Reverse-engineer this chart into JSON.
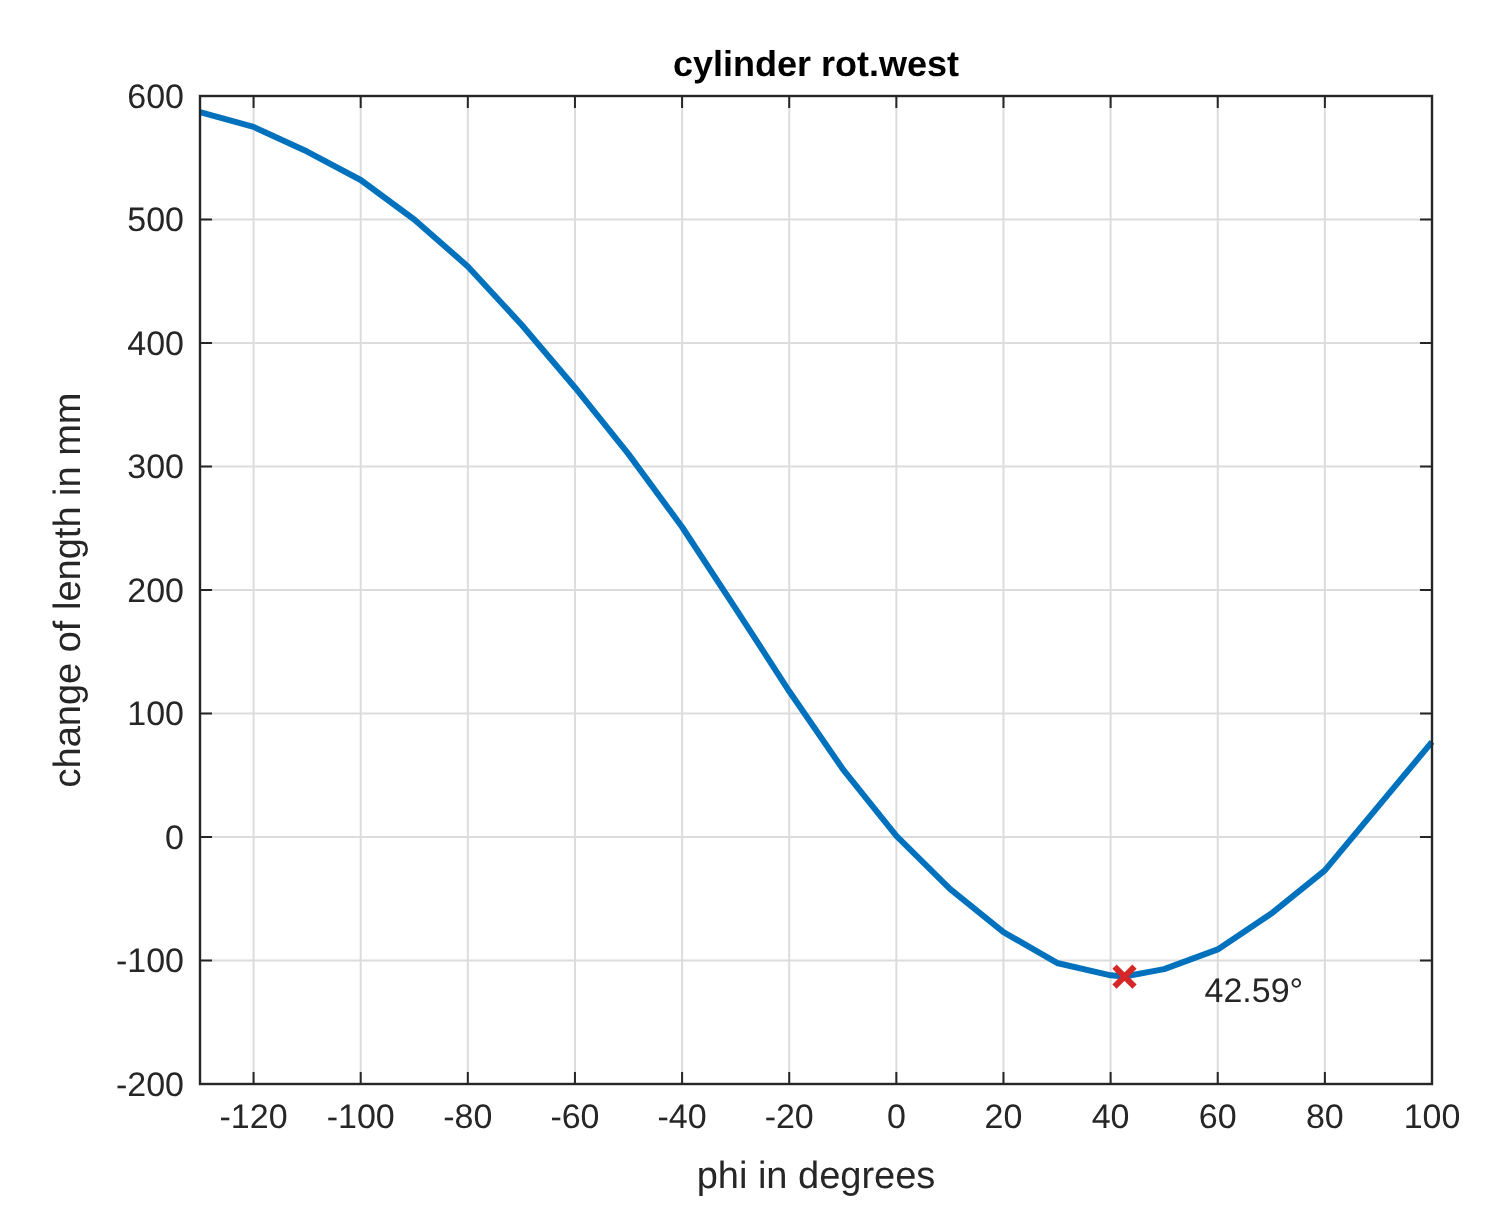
{
  "chart_data": {
    "type": "line",
    "title": "cylinder rot.west",
    "xlabel": "phi in degrees",
    "ylabel": "change of length in mm",
    "xlim": [
      -130,
      100
    ],
    "xticks": [
      -120,
      -100,
      -80,
      -60,
      -40,
      -20,
      0,
      20,
      40,
      60,
      80,
      100
    ],
    "ylim": [
      -200,
      600
    ],
    "yticks": [
      -200,
      -100,
      0,
      100,
      200,
      300,
      400,
      500,
      600
    ],
    "grid": true,
    "series": [
      {
        "color": "#0072bd",
        "marker": "none",
        "line_style": "solid",
        "x": [
          -130,
          -120,
          -110,
          -100,
          -90,
          -80,
          -70,
          -60,
          -50,
          -40,
          -30,
          -20,
          -10,
          0,
          10,
          20,
          30,
          40,
          42.59,
          50,
          60,
          70,
          80,
          90,
          100
        ],
        "values": [
          587,
          575,
          555,
          532,
          500,
          462,
          415,
          364,
          310,
          251,
          185,
          118,
          55,
          1,
          -42,
          -77,
          -102,
          -112,
          -113,
          -107,
          -91,
          -62,
          -27,
          25,
          77
        ]
      },
      {
        "type": "scatter",
        "color": "#d62728",
        "marker": "cross",
        "x": [
          42.59
        ],
        "values": [
          -113
        ]
      }
    ],
    "annotations": [
      {
        "text": "42.59°",
        "x": 42.59,
        "y": -113
      }
    ]
  }
}
